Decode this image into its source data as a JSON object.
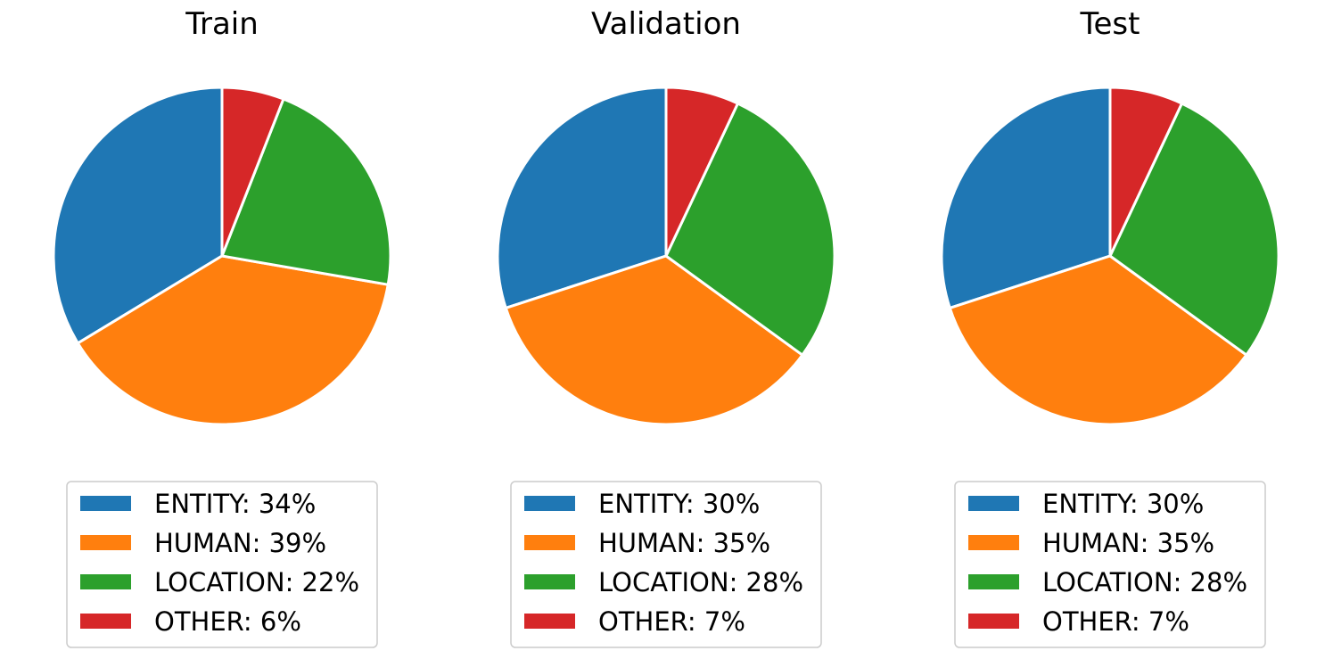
{
  "chart_data": [
    {
      "type": "pie",
      "title": "Train",
      "categories": [
        "ENTITY",
        "HUMAN",
        "LOCATION",
        "OTHER"
      ],
      "values": [
        34,
        39,
        22,
        6
      ],
      "legend_labels": [
        "ENTITY: 34%",
        "HUMAN: 39%",
        "LOCATION: 22%",
        "OTHER: 6%"
      ],
      "colors": [
        "#1f77b4",
        "#ff7f0e",
        "#2ca02c",
        "#d62728"
      ],
      "start_angle_deg": 90,
      "direction": "counterclockwise",
      "legend": "below"
    },
    {
      "type": "pie",
      "title": "Validation",
      "categories": [
        "ENTITY",
        "HUMAN",
        "LOCATION",
        "OTHER"
      ],
      "values": [
        30,
        35,
        28,
        7
      ],
      "legend_labels": [
        "ENTITY: 30%",
        "HUMAN: 35%",
        "LOCATION: 28%",
        "OTHER: 7%"
      ],
      "colors": [
        "#1f77b4",
        "#ff7f0e",
        "#2ca02c",
        "#d62728"
      ],
      "start_angle_deg": 90,
      "direction": "counterclockwise",
      "legend": "below"
    },
    {
      "type": "pie",
      "title": "Test",
      "categories": [
        "ENTITY",
        "HUMAN",
        "LOCATION",
        "OTHER"
      ],
      "values": [
        30,
        35,
        28,
        7
      ],
      "legend_labels": [
        "ENTITY: 30%",
        "HUMAN: 35%",
        "LOCATION: 28%",
        "OTHER: 7%"
      ],
      "colors": [
        "#1f77b4",
        "#ff7f0e",
        "#2ca02c",
        "#d62728"
      ],
      "start_angle_deg": 90,
      "direction": "counterclockwise",
      "legend": "below"
    }
  ]
}
